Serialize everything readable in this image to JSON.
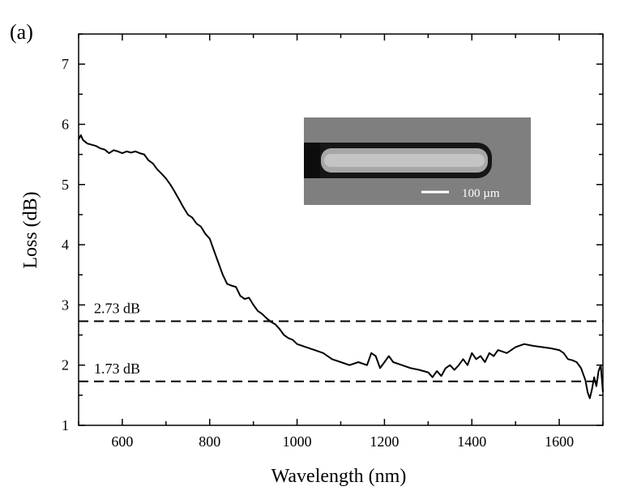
{
  "panel_label": "(a)",
  "chart_data": {
    "type": "line",
    "title": "",
    "xlabel": "Wavelength (nm)",
    "ylabel": "Loss (dB)",
    "xlim": [
      500,
      1700
    ],
    "ylim": [
      1,
      7.5
    ],
    "x_ticks": [
      600,
      800,
      1000,
      1200,
      1400,
      1600
    ],
    "y_ticks": [
      1,
      2,
      3,
      4,
      5,
      6,
      7
    ],
    "grid": false,
    "series": [
      {
        "color": "#000000",
        "points": [
          [
            500,
            5.75
          ],
          [
            505,
            5.82
          ],
          [
            510,
            5.74
          ],
          [
            520,
            5.68
          ],
          [
            530,
            5.66
          ],
          [
            540,
            5.64
          ],
          [
            550,
            5.6
          ],
          [
            560,
            5.58
          ],
          [
            570,
            5.52
          ],
          [
            580,
            5.57
          ],
          [
            590,
            5.55
          ],
          [
            600,
            5.52
          ],
          [
            610,
            5.55
          ],
          [
            620,
            5.53
          ],
          [
            630,
            5.55
          ],
          [
            640,
            5.52
          ],
          [
            650,
            5.5
          ],
          [
            660,
            5.4
          ],
          [
            670,
            5.35
          ],
          [
            680,
            5.25
          ],
          [
            690,
            5.18
          ],
          [
            700,
            5.1
          ],
          [
            710,
            5.0
          ],
          [
            720,
            4.88
          ],
          [
            730,
            4.75
          ],
          [
            740,
            4.62
          ],
          [
            750,
            4.5
          ],
          [
            760,
            4.45
          ],
          [
            770,
            4.35
          ],
          [
            780,
            4.3
          ],
          [
            790,
            4.18
          ],
          [
            800,
            4.1
          ],
          [
            810,
            3.9
          ],
          [
            820,
            3.7
          ],
          [
            830,
            3.5
          ],
          [
            840,
            3.35
          ],
          [
            850,
            3.32
          ],
          [
            860,
            3.3
          ],
          [
            870,
            3.15
          ],
          [
            880,
            3.1
          ],
          [
            890,
            3.12
          ],
          [
            900,
            3.0
          ],
          [
            910,
            2.9
          ],
          [
            920,
            2.85
          ],
          [
            930,
            2.78
          ],
          [
            940,
            2.72
          ],
          [
            950,
            2.68
          ],
          [
            960,
            2.6
          ],
          [
            970,
            2.5
          ],
          [
            980,
            2.45
          ],
          [
            990,
            2.42
          ],
          [
            1000,
            2.35
          ],
          [
            1020,
            2.3
          ],
          [
            1040,
            2.25
          ],
          [
            1060,
            2.2
          ],
          [
            1080,
            2.1
          ],
          [
            1100,
            2.05
          ],
          [
            1120,
            2.0
          ],
          [
            1140,
            2.05
          ],
          [
            1160,
            2.0
          ],
          [
            1170,
            2.2
          ],
          [
            1180,
            2.15
          ],
          [
            1190,
            1.95
          ],
          [
            1200,
            2.05
          ],
          [
            1210,
            2.15
          ],
          [
            1220,
            2.05
          ],
          [
            1240,
            2.0
          ],
          [
            1260,
            1.95
          ],
          [
            1280,
            1.92
          ],
          [
            1300,
            1.88
          ],
          [
            1310,
            1.8
          ],
          [
            1320,
            1.9
          ],
          [
            1330,
            1.82
          ],
          [
            1340,
            1.95
          ],
          [
            1350,
            2.0
          ],
          [
            1360,
            1.92
          ],
          [
            1370,
            2.0
          ],
          [
            1380,
            2.1
          ],
          [
            1390,
            2.0
          ],
          [
            1400,
            2.2
          ],
          [
            1410,
            2.1
          ],
          [
            1420,
            2.15
          ],
          [
            1430,
            2.05
          ],
          [
            1440,
            2.2
          ],
          [
            1450,
            2.15
          ],
          [
            1460,
            2.25
          ],
          [
            1480,
            2.2
          ],
          [
            1500,
            2.3
          ],
          [
            1520,
            2.35
          ],
          [
            1540,
            2.32
          ],
          [
            1560,
            2.3
          ],
          [
            1580,
            2.28
          ],
          [
            1600,
            2.25
          ],
          [
            1610,
            2.2
          ],
          [
            1620,
            2.1
          ],
          [
            1630,
            2.08
          ],
          [
            1640,
            2.05
          ],
          [
            1650,
            1.95
          ],
          [
            1660,
            1.75
          ],
          [
            1665,
            1.55
          ],
          [
            1670,
            1.45
          ],
          [
            1675,
            1.6
          ],
          [
            1680,
            1.8
          ],
          [
            1685,
            1.65
          ],
          [
            1690,
            1.9
          ],
          [
            1695,
            2.0
          ],
          [
            1700,
            1.55
          ]
        ]
      }
    ],
    "reference_lines": [
      {
        "y": 2.73,
        "label": "2.73 dB",
        "style": "dashed"
      },
      {
        "y": 1.73,
        "label": "1.73 dB",
        "style": "dashed"
      }
    ]
  },
  "inset": {
    "scale_bar_label": "100 µm",
    "background_color": "#7f7f7f"
  }
}
